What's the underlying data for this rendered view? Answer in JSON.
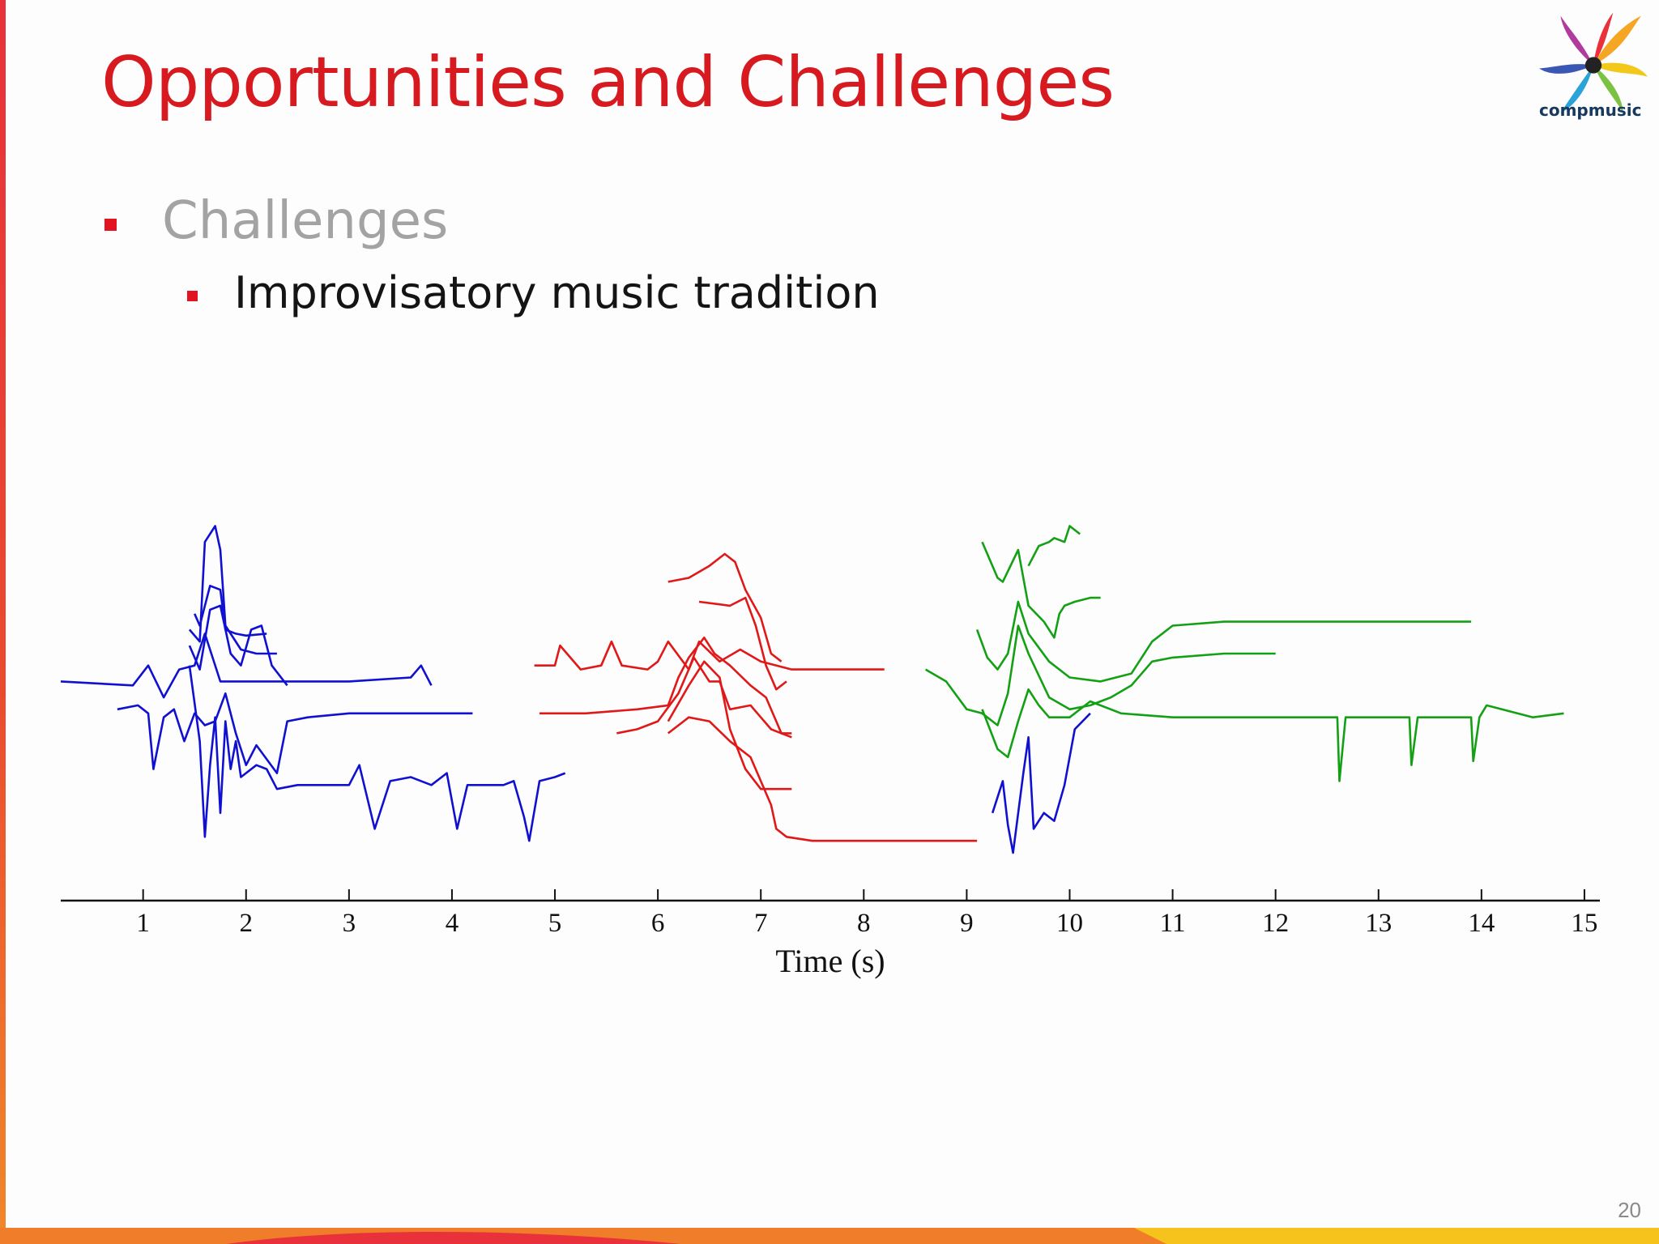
{
  "slide": {
    "title": "Opportunities and Challenges",
    "bullet_level1": "Challenges",
    "bullet_level2": "Improvisatory music tradition",
    "logo_text": "compmusic",
    "page_number": "20"
  },
  "colors": {
    "title": "#d71a20",
    "bullet": "#e2141f",
    "level1_text": "#a3a3a3",
    "level2_text": "#141414",
    "blue_series": "#1010d0",
    "red_series": "#e01818",
    "green_series": "#14a014"
  },
  "chart_data": {
    "type": "line",
    "xlabel": "Time (s)",
    "ylabel": "",
    "xlim": [
      0.2,
      15.15
    ],
    "ylim": [
      0,
      10
    ],
    "xticks": [
      1,
      2,
      3,
      4,
      5,
      6,
      7,
      8,
      9,
      10,
      11,
      12,
      13,
      14,
      15
    ],
    "grid": false,
    "legend": "none",
    "series": [
      {
        "color": "#1010d0",
        "points": [
          [
            0.2,
            5.5
          ],
          [
            0.9,
            5.4
          ],
          [
            1.05,
            5.9
          ],
          [
            1.2,
            5.1
          ],
          [
            1.35,
            5.8
          ],
          [
            1.5,
            5.9
          ],
          [
            1.6,
            6.7
          ],
          [
            1.75,
            5.5
          ],
          [
            2.2,
            5.5
          ],
          [
            3.0,
            5.5
          ],
          [
            3.6,
            5.6
          ],
          [
            3.7,
            5.9
          ],
          [
            3.8,
            5.4
          ]
        ]
      },
      {
        "color": "#1010d0",
        "points": [
          [
            1.5,
            7.2
          ],
          [
            1.55,
            6.9
          ],
          [
            1.65,
            7.9
          ],
          [
            1.75,
            7.8
          ],
          [
            1.8,
            6.8
          ],
          [
            1.9,
            6.7
          ],
          [
            2.0,
            6.65
          ],
          [
            2.2,
            6.7
          ]
        ]
      },
      {
        "color": "#1010d0",
        "points": [
          [
            1.45,
            6.8
          ],
          [
            1.55,
            6.5
          ],
          [
            1.6,
            9.0
          ],
          [
            1.7,
            9.4
          ],
          [
            1.75,
            8.8
          ],
          [
            1.8,
            6.9
          ],
          [
            1.95,
            6.3
          ],
          [
            2.1,
            6.2
          ],
          [
            2.3,
            6.2
          ]
        ]
      },
      {
        "color": "#1010d0",
        "points": [
          [
            1.45,
            6.4
          ],
          [
            1.55,
            5.8
          ],
          [
            1.65,
            7.3
          ],
          [
            1.75,
            7.4
          ],
          [
            1.85,
            6.2
          ],
          [
            1.95,
            5.9
          ],
          [
            2.05,
            6.8
          ],
          [
            2.15,
            6.9
          ],
          [
            2.25,
            5.9
          ],
          [
            2.4,
            5.4
          ]
        ]
      },
      {
        "color": "#1010d0",
        "points": [
          [
            0.75,
            4.8
          ],
          [
            0.95,
            4.9
          ],
          [
            1.05,
            4.7
          ],
          [
            1.1,
            3.3
          ],
          [
            1.2,
            4.6
          ],
          [
            1.3,
            4.8
          ],
          [
            1.4,
            4.0
          ],
          [
            1.5,
            4.7
          ],
          [
            1.6,
            4.4
          ],
          [
            1.7,
            4.5
          ],
          [
            1.8,
            5.2
          ],
          [
            1.9,
            4.2
          ],
          [
            2.0,
            3.4
          ],
          [
            2.1,
            3.9
          ],
          [
            2.3,
            3.2
          ],
          [
            2.4,
            4.5
          ],
          [
            2.6,
            4.6
          ],
          [
            3.0,
            4.7
          ],
          [
            4.2,
            4.7
          ]
        ]
      },
      {
        "color": "#1010d0",
        "points": [
          [
            1.45,
            5.9
          ],
          [
            1.55,
            4.0
          ],
          [
            1.6,
            1.6
          ],
          [
            1.65,
            3.4
          ],
          [
            1.7,
            4.6
          ],
          [
            1.75,
            2.2
          ],
          [
            1.8,
            4.5
          ],
          [
            1.85,
            3.3
          ],
          [
            1.9,
            4.0
          ],
          [
            1.95,
            3.1
          ],
          [
            2.1,
            3.4
          ],
          [
            2.2,
            3.3
          ],
          [
            2.3,
            2.8
          ],
          [
            2.5,
            2.9
          ],
          [
            3.0,
            2.9
          ],
          [
            3.1,
            3.4
          ],
          [
            3.25,
            1.8
          ],
          [
            3.4,
            3.0
          ],
          [
            3.6,
            3.1
          ],
          [
            3.8,
            2.9
          ],
          [
            3.95,
            3.2
          ],
          [
            4.05,
            1.8
          ],
          [
            4.15,
            2.9
          ],
          [
            4.5,
            2.9
          ],
          [
            4.6,
            3.0
          ],
          [
            4.7,
            2.1
          ],
          [
            4.75,
            1.5
          ],
          [
            4.85,
            3.0
          ],
          [
            5.0,
            3.1
          ],
          [
            5.1,
            3.2
          ]
        ]
      },
      {
        "color": "#e01818",
        "points": [
          [
            4.8,
            5.9
          ],
          [
            5.0,
            5.9
          ],
          [
            5.05,
            6.4
          ],
          [
            5.15,
            6.1
          ],
          [
            5.25,
            5.8
          ],
          [
            5.45,
            5.9
          ],
          [
            5.55,
            6.5
          ],
          [
            5.65,
            5.9
          ],
          [
            5.9,
            5.8
          ],
          [
            6.0,
            6.0
          ],
          [
            6.1,
            6.5
          ],
          [
            6.3,
            5.8
          ],
          [
            6.4,
            6.5
          ],
          [
            6.6,
            6.0
          ],
          [
            6.8,
            6.3
          ],
          [
            7.0,
            6.0
          ],
          [
            7.3,
            5.8
          ],
          [
            8.2,
            5.8
          ]
        ]
      },
      {
        "color": "#e01818",
        "points": [
          [
            6.1,
            8.0
          ],
          [
            6.3,
            8.1
          ],
          [
            6.5,
            8.4
          ],
          [
            6.65,
            8.7
          ],
          [
            6.75,
            8.5
          ],
          [
            6.85,
            7.8
          ],
          [
            7.0,
            7.1
          ],
          [
            7.1,
            6.2
          ],
          [
            7.2,
            6.0
          ]
        ]
      },
      {
        "color": "#e01818",
        "points": [
          [
            6.4,
            7.5
          ],
          [
            6.7,
            7.4
          ],
          [
            6.85,
            7.6
          ],
          [
            6.95,
            6.9
          ],
          [
            7.05,
            5.9
          ],
          [
            7.15,
            5.3
          ],
          [
            7.25,
            5.5
          ]
        ]
      },
      {
        "color": "#e01818",
        "points": [
          [
            4.85,
            4.7
          ],
          [
            5.3,
            4.7
          ],
          [
            5.8,
            4.8
          ],
          [
            6.1,
            4.9
          ],
          [
            6.2,
            5.6
          ],
          [
            6.3,
            6.1
          ],
          [
            6.45,
            6.6
          ],
          [
            6.55,
            6.2
          ],
          [
            6.7,
            5.9
          ],
          [
            6.9,
            5.4
          ],
          [
            7.05,
            5.1
          ],
          [
            7.2,
            4.2
          ],
          [
            7.3,
            4.1
          ]
        ]
      },
      {
        "color": "#e01818",
        "points": [
          [
            5.6,
            4.2
          ],
          [
            5.8,
            4.3
          ],
          [
            6.0,
            4.5
          ],
          [
            6.2,
            5.2
          ],
          [
            6.35,
            6.1
          ],
          [
            6.5,
            5.5
          ],
          [
            6.6,
            5.5
          ],
          [
            6.7,
            4.8
          ],
          [
            6.9,
            4.9
          ],
          [
            7.0,
            4.6
          ],
          [
            7.1,
            4.3
          ],
          [
            7.2,
            4.2
          ],
          [
            7.3,
            4.2
          ]
        ]
      },
      {
        "color": "#e01818",
        "points": [
          [
            6.1,
            4.5
          ],
          [
            6.3,
            5.4
          ],
          [
            6.45,
            6.0
          ],
          [
            6.6,
            5.6
          ],
          [
            6.7,
            4.3
          ],
          [
            6.85,
            3.3
          ],
          [
            7.0,
            2.8
          ],
          [
            7.15,
            2.8
          ],
          [
            7.3,
            2.8
          ]
        ]
      },
      {
        "color": "#e01818",
        "points": [
          [
            6.1,
            4.2
          ],
          [
            6.3,
            4.6
          ],
          [
            6.5,
            4.5
          ],
          [
            6.7,
            4.0
          ],
          [
            6.9,
            3.6
          ],
          [
            7.1,
            2.4
          ],
          [
            7.15,
            1.8
          ],
          [
            7.25,
            1.6
          ],
          [
            7.5,
            1.5
          ],
          [
            8.2,
            1.5
          ],
          [
            9.1,
            1.5
          ]
        ]
      },
      {
        "color": "#14a014",
        "points": [
          [
            9.15,
            9.0
          ],
          [
            9.3,
            8.1
          ],
          [
            9.35,
            8.0
          ],
          [
            9.5,
            8.8
          ],
          [
            9.6,
            7.4
          ],
          [
            9.75,
            7.0
          ],
          [
            9.85,
            6.6
          ],
          [
            9.9,
            7.2
          ],
          [
            9.95,
            7.4
          ],
          [
            10.05,
            7.5
          ],
          [
            10.2,
            7.6
          ],
          [
            10.3,
            7.6
          ]
        ]
      },
      {
        "color": "#14a014",
        "points": [
          [
            9.6,
            8.4
          ],
          [
            9.7,
            8.9
          ],
          [
            9.8,
            9.0
          ],
          [
            9.85,
            9.1
          ],
          [
            9.95,
            9.0
          ],
          [
            10.0,
            9.4
          ],
          [
            10.1,
            9.2
          ]
        ]
      },
      {
        "color": "#14a014",
        "points": [
          [
            9.1,
            6.8
          ],
          [
            9.2,
            6.1
          ],
          [
            9.3,
            5.8
          ],
          [
            9.4,
            6.2
          ],
          [
            9.5,
            7.5
          ],
          [
            9.6,
            6.7
          ],
          [
            9.8,
            6.0
          ],
          [
            10.0,
            5.6
          ],
          [
            10.3,
            5.5
          ],
          [
            10.6,
            5.7
          ],
          [
            10.8,
            6.5
          ],
          [
            11.0,
            6.9
          ],
          [
            11.5,
            7.0
          ],
          [
            12.5,
            7.0
          ],
          [
            13.9,
            7.0
          ]
        ]
      },
      {
        "color": "#14a014",
        "points": [
          [
            8.6,
            5.8
          ],
          [
            8.8,
            5.5
          ],
          [
            9.0,
            4.8
          ],
          [
            9.15,
            4.7
          ],
          [
            9.3,
            4.4
          ],
          [
            9.4,
            5.2
          ],
          [
            9.5,
            6.9
          ],
          [
            9.6,
            6.2
          ],
          [
            9.8,
            5.1
          ],
          [
            10.0,
            4.8
          ],
          [
            10.2,
            4.9
          ],
          [
            10.4,
            5.1
          ],
          [
            10.6,
            5.4
          ],
          [
            10.8,
            6.0
          ],
          [
            11.0,
            6.1
          ],
          [
            11.5,
            6.2
          ],
          [
            12.0,
            6.2
          ]
        ]
      },
      {
        "color": "#14a014",
        "points": [
          [
            9.15,
            4.8
          ],
          [
            9.3,
            3.8
          ],
          [
            9.4,
            3.6
          ],
          [
            9.5,
            4.5
          ],
          [
            9.6,
            5.3
          ],
          [
            9.7,
            4.9
          ],
          [
            9.8,
            4.6
          ],
          [
            10.0,
            4.6
          ],
          [
            10.2,
            5.0
          ],
          [
            10.5,
            4.7
          ],
          [
            11.0,
            4.6
          ],
          [
            12.0,
            4.6
          ],
          [
            12.6,
            4.6
          ],
          [
            12.62,
            3.0
          ],
          [
            12.68,
            4.6
          ],
          [
            13.3,
            4.6
          ],
          [
            13.32,
            3.4
          ],
          [
            13.38,
            4.6
          ],
          [
            13.9,
            4.6
          ],
          [
            13.92,
            3.5
          ],
          [
            13.98,
            4.6
          ],
          [
            14.05,
            4.9
          ],
          [
            14.5,
            4.6
          ],
          [
            14.8,
            4.7
          ]
        ]
      },
      {
        "color": "#1010d0",
        "points": [
          [
            9.25,
            2.2
          ],
          [
            9.35,
            3.0
          ],
          [
            9.4,
            1.9
          ],
          [
            9.45,
            1.2
          ],
          [
            9.55,
            3.2
          ],
          [
            9.6,
            4.1
          ],
          [
            9.65,
            1.8
          ],
          [
            9.75,
            2.2
          ],
          [
            9.85,
            2.0
          ],
          [
            9.95,
            2.9
          ],
          [
            10.05,
            4.3
          ],
          [
            10.2,
            4.7
          ]
        ]
      }
    ]
  }
}
